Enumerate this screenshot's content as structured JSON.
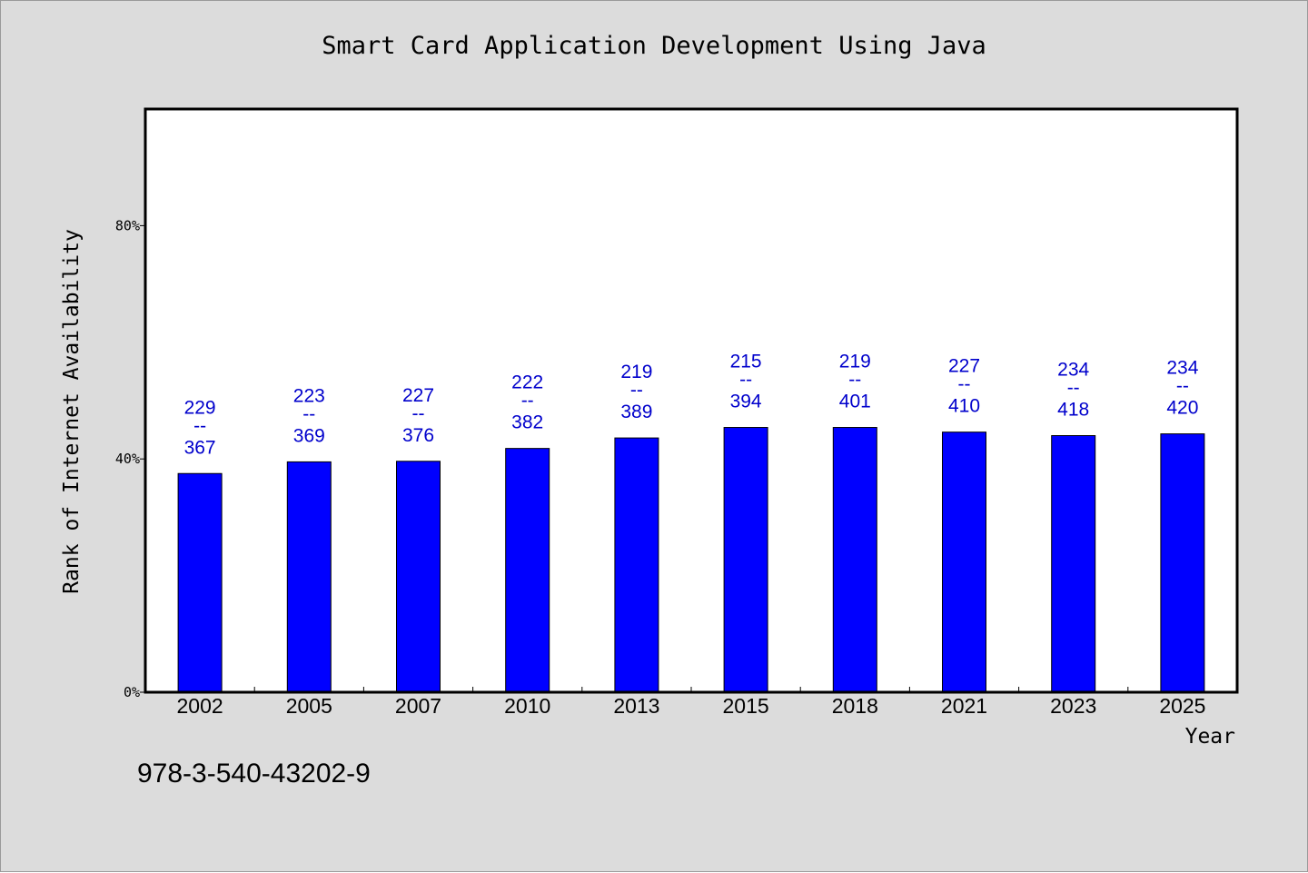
{
  "colors": {
    "frame_background": "#dcdcdc",
    "plot_background": "#ffffff",
    "bar_fill": "#0000ff",
    "data_label": "#0000cc",
    "axis": "#000000"
  },
  "footer": {
    "isbn": "978-3-540-43202-9"
  },
  "chart_data": {
    "type": "bar",
    "title": "Smart Card Application Development Using Java",
    "xlabel": "Year",
    "ylabel": "Rank of Internet Availability",
    "ylim": [
      0,
      100
    ],
    "yticks": [
      0,
      40,
      80
    ],
    "ytick_labels": [
      "0%",
      "40%",
      "80%"
    ],
    "grid": false,
    "legend": "none",
    "categories": [
      "2002",
      "2005",
      "2007",
      "2010",
      "2013",
      "2015",
      "2018",
      "2021",
      "2023",
      "2025"
    ],
    "values": [
      37.5,
      39.5,
      39.6,
      41.8,
      43.6,
      45.4,
      45.4,
      44.6,
      44.0,
      44.3
    ],
    "label_top": [
      "229",
      "223",
      "227",
      "222",
      "219",
      "215",
      "219",
      "227",
      "234",
      "234"
    ],
    "label_separator": "--",
    "label_bottom": [
      "367",
      "369",
      "376",
      "382",
      "389",
      "394",
      "401",
      "410",
      "418",
      "420"
    ]
  }
}
